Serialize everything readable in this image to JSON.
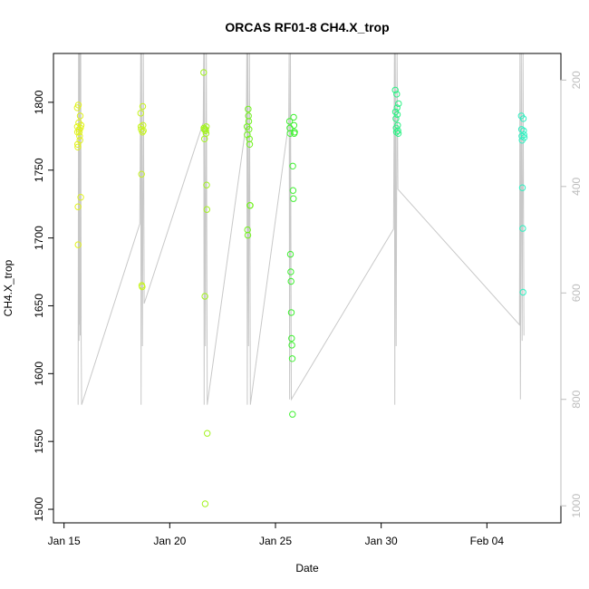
{
  "chart_data": {
    "type": "scatter",
    "title": "ORCAS RF01-8 CH4.X_trop",
    "xlabel": "Date",
    "ylabel": "CH4.X_trop",
    "x_axis": {
      "type": "date",
      "range": [
        "2016-01-14T12:00",
        "2016-02-07T12:00"
      ],
      "ticks": [
        {
          "value": "2016-01-15",
          "label": "Jan 15"
        },
        {
          "value": "2016-01-20",
          "label": "Jan 20"
        },
        {
          "value": "2016-01-25",
          "label": "Jan 25"
        },
        {
          "value": "2016-01-30",
          "label": "Jan 30"
        },
        {
          "value": "2016-02-04",
          "label": "Feb 04"
        }
      ]
    },
    "y_axis": {
      "range": [
        1490,
        1836
      ],
      "ticks": [
        1500,
        1550,
        1600,
        1650,
        1700,
        1750,
        1800
      ]
    },
    "y2_axis": {
      "description": "right axis (pressure), reversed",
      "range_top": 150,
      "range_bottom": 1032,
      "ticks": [
        200,
        400,
        600,
        800,
        1000
      ],
      "color": "#bdbdbd"
    },
    "grid": false,
    "legend": "none",
    "background_series": {
      "color": "#c8c8c8",
      "note": "pressure trace on right axis",
      "trace": [
        [
          "2016-01-15T16:00",
          810
        ],
        [
          "2016-01-15T16:30",
          150
        ],
        [
          "2016-01-15T17:00",
          690
        ],
        [
          "2016-01-15T17:20",
          150
        ],
        [
          "2016-01-15T17:40",
          660
        ],
        [
          "2016-01-15T18:00",
          150
        ],
        [
          "2016-01-15T18:20",
          680
        ],
        [
          "2016-01-15T19:00",
          150
        ],
        [
          "2016-01-15T19:30",
          700
        ],
        [
          "2016-01-15T20:00",
          810
        ],
        [
          "2016-01-18T14:00",
          470
        ],
        [
          "2016-01-18T15:00",
          150
        ],
        [
          "2016-01-18T15:30",
          810
        ],
        [
          "2016-01-18T16:00",
          150
        ],
        [
          "2016-01-18T17:00",
          700
        ],
        [
          "2016-01-18T18:00",
          150
        ],
        [
          "2016-01-18T19:00",
          620
        ],
        [
          "2016-01-21T14:00",
          280
        ],
        [
          "2016-01-21T14:30",
          150
        ],
        [
          "2016-01-21T15:00",
          810
        ],
        [
          "2016-01-21T15:30",
          150
        ],
        [
          "2016-01-21T16:30",
          700
        ],
        [
          "2016-01-21T17:30",
          150
        ],
        [
          "2016-01-21T18:30",
          810
        ],
        [
          "2016-01-23T15:00",
          280
        ],
        [
          "2016-01-23T15:30",
          150
        ],
        [
          "2016-01-23T16:00",
          810
        ],
        [
          "2016-01-23T16:30",
          150
        ],
        [
          "2016-01-23T17:30",
          700
        ],
        [
          "2016-01-23T18:30",
          150
        ],
        [
          "2016-01-23T19:30",
          810
        ],
        [
          "2016-01-25T15:00",
          280
        ],
        [
          "2016-01-25T15:30",
          150
        ],
        [
          "2016-01-25T16:00",
          800
        ],
        [
          "2016-01-25T17:00",
          150
        ],
        [
          "2016-01-25T18:00",
          800
        ],
        [
          "2016-01-30T14:00",
          480
        ],
        [
          "2016-01-30T15:00",
          150
        ],
        [
          "2016-01-30T15:30",
          810
        ],
        [
          "2016-01-30T16:00",
          150
        ],
        [
          "2016-01-30T17:00",
          700
        ],
        [
          "2016-01-30T18:00",
          150
        ],
        [
          "2016-01-30T19:00",
          405
        ],
        [
          "2016-02-05T13:00",
          660
        ],
        [
          "2016-02-05T13:30",
          150
        ],
        [
          "2016-02-05T14:00",
          800
        ],
        [
          "2016-02-05T15:00",
          150
        ],
        [
          "2016-02-05T16:00",
          690
        ],
        [
          "2016-02-05T17:00",
          150
        ],
        [
          "2016-02-05T18:00",
          680
        ]
      ]
    },
    "series": [
      {
        "color": "#e1f21e",
        "points": [
          [
            "2016-01-15T15:00",
            1796
          ],
          [
            "2016-01-15T15:10",
            1782
          ],
          [
            "2016-01-15T15:20",
            1778
          ],
          [
            "2016-01-15T15:30",
            1769
          ],
          [
            "2016-01-15T15:40",
            1767
          ],
          [
            "2016-01-15T15:50",
            1723
          ],
          [
            "2016-01-15T16:00",
            1695
          ],
          [
            "2016-01-15T16:20",
            1798
          ],
          [
            "2016-01-15T16:40",
            1785
          ],
          [
            "2016-01-15T17:00",
            1780
          ],
          [
            "2016-01-15T17:20",
            1778
          ],
          [
            "2016-01-15T17:40",
            1775
          ],
          [
            "2016-01-15T18:00",
            1772
          ],
          [
            "2016-01-15T18:20",
            1790
          ],
          [
            "2016-01-15T18:40",
            1781
          ],
          [
            "2016-01-15T19:00",
            1730
          ],
          [
            "2016-01-15T19:20",
            1783
          ]
        ]
      },
      {
        "color": "#c7f420",
        "points": [
          [
            "2016-01-18T15:00",
            1792
          ],
          [
            "2016-01-18T15:20",
            1782
          ],
          [
            "2016-01-18T15:40",
            1780
          ],
          [
            "2016-01-18T16:00",
            1747
          ],
          [
            "2016-01-18T16:20",
            1665
          ],
          [
            "2016-01-18T16:40",
            1664
          ],
          [
            "2016-01-18T17:00",
            1778
          ],
          [
            "2016-01-18T17:20",
            1797
          ],
          [
            "2016-01-18T17:40",
            1783
          ],
          [
            "2016-01-18T18:00",
            1779
          ]
        ]
      },
      {
        "color": "#a2f31e",
        "points": [
          [
            "2016-01-21T14:30",
            1822
          ],
          [
            "2016-01-21T14:50",
            1781
          ],
          [
            "2016-01-21T15:10",
            1780
          ],
          [
            "2016-01-21T15:30",
            1773
          ],
          [
            "2016-01-21T15:50",
            1657
          ],
          [
            "2016-01-21T16:10",
            1504
          ],
          [
            "2016-01-21T16:30",
            1780
          ],
          [
            "2016-01-21T16:50",
            1779
          ],
          [
            "2016-01-21T17:10",
            1777
          ],
          [
            "2016-01-21T17:30",
            1782
          ],
          [
            "2016-01-21T17:50",
            1739
          ],
          [
            "2016-01-21T18:10",
            1721
          ],
          [
            "2016-01-21T18:30",
            1556
          ]
        ]
      },
      {
        "color": "#72f21e",
        "points": [
          [
            "2016-01-23T15:40",
            1782
          ],
          [
            "2016-01-23T16:00",
            1776
          ],
          [
            "2016-01-23T16:20",
            1706
          ],
          [
            "2016-01-23T16:40",
            1702
          ],
          [
            "2016-01-23T17:00",
            1795
          ],
          [
            "2016-01-23T17:20",
            1790
          ],
          [
            "2016-01-23T17:40",
            1786
          ],
          [
            "2016-01-23T18:00",
            1780
          ],
          [
            "2016-01-23T18:20",
            1773
          ],
          [
            "2016-01-23T18:40",
            1769
          ],
          [
            "2016-01-23T19:00",
            1724
          ],
          [
            "2016-01-23T19:20",
            1724
          ]
        ]
      },
      {
        "color": "#3ff031",
        "points": [
          [
            "2016-01-25T16:00",
            1786
          ],
          [
            "2016-01-25T16:20",
            1781
          ],
          [
            "2016-01-25T16:40",
            1777
          ],
          [
            "2016-01-25T17:00",
            1688
          ],
          [
            "2016-01-25T17:20",
            1675
          ],
          [
            "2016-01-25T17:40",
            1668
          ],
          [
            "2016-01-25T18:00",
            1645
          ],
          [
            "2016-01-25T18:20",
            1626
          ],
          [
            "2016-01-25T18:40",
            1621
          ],
          [
            "2016-01-25T19:00",
            1611
          ],
          [
            "2016-01-25T19:20",
            1570
          ],
          [
            "2016-01-25T19:40",
            1753
          ],
          [
            "2016-01-25T20:00",
            1735
          ],
          [
            "2016-01-25T20:20",
            1729
          ],
          [
            "2016-01-25T20:40",
            1789
          ],
          [
            "2016-01-25T21:00",
            1783
          ],
          [
            "2016-01-25T21:20",
            1777
          ],
          [
            "2016-01-25T21:40",
            1778
          ]
        ]
      },
      {
        "color": "#2ef186",
        "points": [
          [
            "2016-01-30T16:00",
            1809
          ],
          [
            "2016-01-30T16:20",
            1793
          ],
          [
            "2016-01-30T16:40",
            1788
          ],
          [
            "2016-01-30T17:00",
            1781
          ],
          [
            "2016-01-30T17:20",
            1778
          ],
          [
            "2016-01-30T17:40",
            1806
          ],
          [
            "2016-01-30T18:00",
            1796
          ],
          [
            "2016-01-30T18:20",
            1791
          ],
          [
            "2016-01-30T18:40",
            1783
          ],
          [
            "2016-01-30T19:00",
            1779
          ],
          [
            "2016-01-30T19:20",
            1777
          ],
          [
            "2016-01-30T19:40",
            1799
          ]
        ]
      },
      {
        "color": "#2ef2c2",
        "points": [
          [
            "2016-02-05T15:00",
            1790
          ],
          [
            "2016-02-05T15:20",
            1780
          ],
          [
            "2016-02-05T15:40",
            1775
          ],
          [
            "2016-02-05T16:00",
            1772
          ],
          [
            "2016-02-05T16:20",
            1737
          ],
          [
            "2016-02-05T16:40",
            1707
          ],
          [
            "2016-02-05T17:00",
            1660
          ],
          [
            "2016-02-05T17:20",
            1788
          ],
          [
            "2016-02-05T17:40",
            1779
          ],
          [
            "2016-02-05T18:00",
            1776
          ],
          [
            "2016-02-05T18:20",
            1774
          ]
        ]
      }
    ]
  }
}
